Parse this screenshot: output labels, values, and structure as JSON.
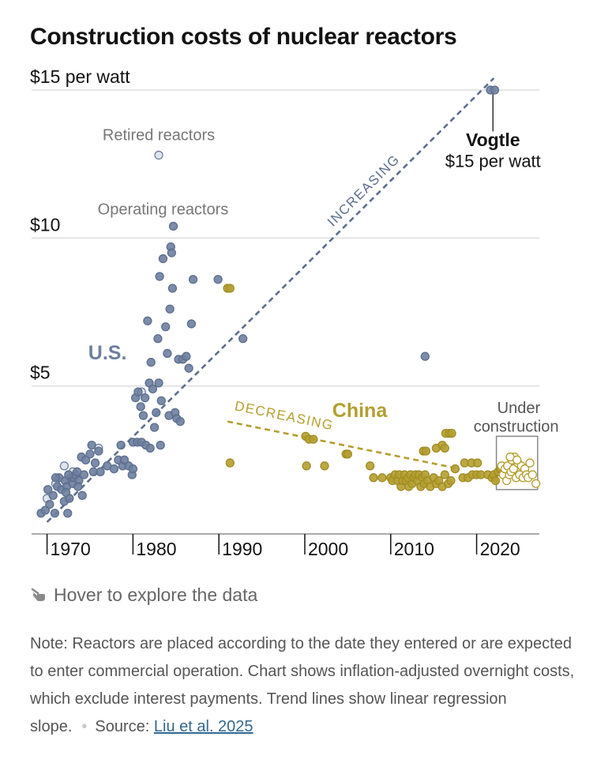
{
  "title": "Construction costs of nuclear reactors",
  "hover_hint": "Hover to explore the data",
  "note": "Note: Reactors are placed according to the date they entered or are expected to enter commercial operation. Chart shows inflation-adjusted overnight costs, which exclude interest payments. Trend lines show linear regression slope.",
  "source_label": "Source:",
  "source_link": "Liu et al. 2025",
  "colors": {
    "us": "#6e7f9f",
    "china": "#b49e2f",
    "grid": "#dddddd",
    "axis": "#121212"
  },
  "chart_data": {
    "type": "scatter",
    "y_tick_labels": [
      "$15 per watt",
      "$10",
      "$5"
    ],
    "y_ticks": [
      15,
      10,
      5
    ],
    "x_tick_labels": [
      "1970",
      "1980",
      "1990",
      "2000",
      "2010",
      "2020"
    ],
    "x_ticks": [
      1970,
      1980,
      1990,
      2000,
      2010,
      2020
    ],
    "xlim": [
      1968.2,
      2027.3
    ],
    "ylim": [
      0,
      15.4
    ],
    "labels": {
      "retired": "Retired reactors",
      "operating": "Operating reactors",
      "us": "U.S.",
      "china": "China",
      "increasing": "INCREASING",
      "decreasing": "DECREASING",
      "vogtle_name": "Vogtle",
      "vogtle_value": "$15 per watt",
      "under_construction": [
        "Under",
        "construction"
      ]
    },
    "trend_lines": [
      {
        "name": "us-trend",
        "x": [
          1970,
          2022
        ],
        "y": [
          0.4,
          15.4
        ]
      },
      {
        "name": "china-trend",
        "x": [
          1991,
          2018
        ],
        "y": [
          3.8,
          2.2
        ]
      }
    ],
    "series": [
      {
        "name": "U.S. retired reactors",
        "style": "hollow",
        "points": [
          [
            1970,
            1.2
          ],
          [
            1971,
            1.7
          ],
          [
            1972,
            2.3
          ],
          [
            1973,
            2.1
          ],
          [
            1976,
            2.9
          ],
          [
            1981,
            4.8
          ],
          [
            1983,
            12.8
          ]
        ]
      },
      {
        "name": "U.S. operating reactors",
        "style": "filled",
        "points": [
          [
            1969.3,
            0.7
          ],
          [
            1969.8,
            0.8
          ],
          [
            1970.3,
            1.0
          ],
          [
            1970.7,
            1.3
          ],
          [
            1970.9,
            0.7
          ],
          [
            1971.2,
            1.6
          ],
          [
            1971.4,
            1.9
          ],
          [
            1971.7,
            1.5
          ],
          [
            1972.0,
            1.1
          ],
          [
            1972.1,
            1.8
          ],
          [
            1972.3,
            1.6
          ],
          [
            1972.4,
            0.7
          ],
          [
            1972.6,
            1.2
          ],
          [
            1972.8,
            1.9
          ],
          [
            1973.0,
            1.7
          ],
          [
            1973.1,
            1.9
          ],
          [
            1973.3,
            2.0
          ],
          [
            1973.5,
            2.1
          ],
          [
            1973.7,
            1.8
          ],
          [
            1974.0,
            2.6
          ],
          [
            1974.1,
            1.3
          ],
          [
            1974.3,
            2.0
          ],
          [
            1974.5,
            2.5
          ],
          [
            1975.0,
            2.7
          ],
          [
            1975.2,
            3.0
          ],
          [
            1975.4,
            2.1
          ],
          [
            1975.6,
            2.4
          ],
          [
            1976.0,
            2.8
          ],
          [
            1976.2,
            2.1
          ],
          [
            1977.0,
            2.3
          ],
          [
            1977.8,
            2.2
          ],
          [
            1978.3,
            2.5
          ],
          [
            1978.6,
            3.0
          ],
          [
            1978.8,
            2.3
          ],
          [
            1979.5,
            2.3
          ],
          [
            1979.9,
            2.0
          ],
          [
            1980.3,
            4.6
          ],
          [
            1980.6,
            4.8
          ],
          [
            1980.9,
            4.3
          ],
          [
            1981.2,
            4.0
          ],
          [
            1981.4,
            4.6
          ],
          [
            1981.7,
            7.2
          ],
          [
            1981.9,
            5.1
          ],
          [
            1982.1,
            5.8
          ],
          [
            1982.3,
            4.9
          ],
          [
            1982.5,
            3.6
          ],
          [
            1982.7,
            4.1
          ],
          [
            1982.9,
            6.6
          ],
          [
            1983.0,
            5.1
          ],
          [
            1983.1,
            8.7
          ],
          [
            1983.3,
            4.5
          ],
          [
            1983.5,
            9.3
          ],
          [
            1983.8,
            7.0
          ],
          [
            1984.0,
            6.1
          ],
          [
            1984.2,
            4.0
          ],
          [
            1984.3,
            7.6
          ],
          [
            1984.4,
            9.7
          ],
          [
            1984.5,
            9.5
          ],
          [
            1984.6,
            8.3
          ],
          [
            1984.7,
            10.4
          ],
          [
            1984.9,
            4.1
          ],
          [
            1985.1,
            3.9
          ],
          [
            1985.3,
            5.9
          ],
          [
            1985.5,
            3.8
          ],
          [
            1985.8,
            5.9
          ],
          [
            1986.2,
            6.0
          ],
          [
            1986.5,
            5.6
          ],
          [
            1986.8,
            7.1
          ],
          [
            1987.0,
            8.6
          ],
          [
            1980.0,
            3.1
          ],
          [
            1980.5,
            3.1
          ],
          [
            1981.0,
            3.1
          ],
          [
            1981.5,
            3.0
          ],
          [
            1982.0,
            2.9
          ],
          [
            1983.2,
            3.0
          ],
          [
            1979.0,
            2.5
          ],
          [
            1980.0,
            2.2
          ],
          [
            1970.1,
            1.5
          ],
          [
            1971.0,
            1.9
          ],
          [
            1972.2,
            1.4
          ],
          [
            1972.5,
            2.0
          ],
          [
            1973.6,
            1.6
          ],
          [
            1989.9,
            8.6
          ],
          [
            1992.8,
            6.6
          ],
          [
            2014.0,
            6.0
          ],
          [
            2021.6,
            15.0
          ],
          [
            2022.1,
            15.0
          ]
        ]
      },
      {
        "name": "China reactors",
        "style": "filled",
        "points": [
          [
            1991.0,
            8.3
          ],
          [
            1991.3,
            8.3
          ],
          [
            1991.3,
            2.4
          ],
          [
            2000.1,
            3.3
          ],
          [
            2000.5,
            3.2
          ],
          [
            2001.0,
            3.2
          ],
          [
            2000.2,
            2.3
          ],
          [
            2002.3,
            2.3
          ],
          [
            2004.8,
            2.7
          ],
          [
            2005.0,
            2.7
          ],
          [
            2007.6,
            2.3
          ],
          [
            2008.0,
            1.9
          ],
          [
            2009.0,
            1.9
          ],
          [
            2010.0,
            1.9
          ],
          [
            2010.2,
            1.8
          ],
          [
            2010.5,
            2.0
          ],
          [
            2010.8,
            1.8
          ],
          [
            2011.0,
            2.0
          ],
          [
            2011.2,
            1.6
          ],
          [
            2011.4,
            1.8
          ],
          [
            2011.6,
            2.0
          ],
          [
            2011.8,
            1.8
          ],
          [
            2012.0,
            1.9
          ],
          [
            2012.1,
            1.6
          ],
          [
            2012.3,
            2.0
          ],
          [
            2012.5,
            1.7
          ],
          [
            2012.7,
            1.9
          ],
          [
            2012.9,
            2.0
          ],
          [
            2013.1,
            1.8
          ],
          [
            2013.3,
            2.0
          ],
          [
            2013.5,
            1.6
          ],
          [
            2013.7,
            1.9
          ],
          [
            2013.9,
            1.7
          ],
          [
            2014.0,
            2.0
          ],
          [
            2014.3,
            1.8
          ],
          [
            2014.6,
            1.6
          ],
          [
            2015.0,
            1.9
          ],
          [
            2015.3,
            1.7
          ],
          [
            2015.6,
            1.8
          ],
          [
            2016.0,
            1.6
          ],
          [
            2016.3,
            2.0
          ],
          [
            2016.7,
            1.7
          ],
          [
            2017.0,
            1.8
          ],
          [
            2013.8,
            2.8
          ],
          [
            2014.1,
            2.8
          ],
          [
            2015.3,
            2.9
          ],
          [
            2016.0,
            3.0
          ],
          [
            2016.3,
            2.9
          ],
          [
            2016.4,
            3.4
          ],
          [
            2016.8,
            3.4
          ],
          [
            2017.1,
            3.4
          ],
          [
            2017.5,
            2.2
          ],
          [
            2018.4,
            1.9
          ],
          [
            2019.0,
            1.9
          ],
          [
            2018.6,
            2.4
          ],
          [
            2019.5,
            2.0
          ],
          [
            2020.0,
            2.0
          ],
          [
            2020.5,
            2.0
          ],
          [
            2019.4,
            2.4
          ],
          [
            2020.1,
            2.4
          ],
          [
            2021.3,
            2.0
          ],
          [
            2021.8,
            1.9
          ],
          [
            2022.0,
            2.0
          ],
          [
            2022.2,
            1.8
          ],
          [
            2022.5,
            2.1
          ],
          [
            2022.8,
            2.2
          ]
        ]
      },
      {
        "name": "China under construction",
        "style": "hollow",
        "points": [
          [
            2022.9,
            2.3
          ],
          [
            2023.1,
            2.0
          ],
          [
            2023.3,
            2.2
          ],
          [
            2023.5,
            1.8
          ],
          [
            2023.6,
            2.3
          ],
          [
            2023.8,
            2.0
          ],
          [
            2024.0,
            2.1
          ],
          [
            2024.1,
            2.5
          ],
          [
            2024.3,
            2.2
          ],
          [
            2024.4,
            2.6
          ],
          [
            2024.6,
            1.9
          ],
          [
            2024.8,
            2.4
          ],
          [
            2025.0,
            2.0
          ],
          [
            2025.2,
            2.3
          ],
          [
            2025.4,
            1.9
          ],
          [
            2025.6,
            2.2
          ],
          [
            2025.8,
            2.0
          ],
          [
            2026.0,
            1.9
          ],
          [
            2026.2,
            2.4
          ],
          [
            2026.5,
            2.0
          ],
          [
            2026.9,
            1.7
          ],
          [
            2023.9,
            2.6
          ],
          [
            2024.7,
            2.5
          ]
        ]
      }
    ]
  }
}
